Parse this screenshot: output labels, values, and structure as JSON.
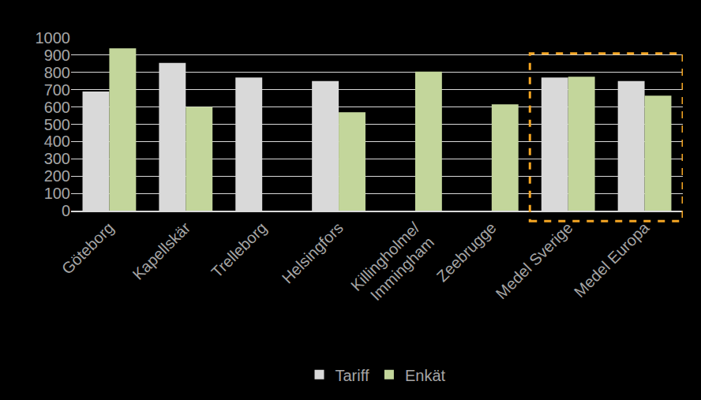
{
  "chart_data": {
    "type": "bar",
    "categories": [
      "Göteborg",
      "Kapellskär",
      "Trelleborg",
      "Helsingfors",
      "Killingholme/\nImmingham",
      "Zeebrugge",
      "Medel Sverige",
      "Medel Europa"
    ],
    "series": [
      {
        "name": "Tariff",
        "color": "#d9d9d9",
        "values": [
          690,
          855,
          770,
          750,
          null,
          null,
          770,
          750
        ]
      },
      {
        "name": "Enkät",
        "color": "#c3d69b",
        "values": [
          940,
          600,
          null,
          570,
          805,
          615,
          775,
          665
        ]
      }
    ],
    "ylim": [
      0,
      1000
    ],
    "yticks": [
      0,
      100,
      200,
      300,
      400,
      500,
      600,
      700,
      800,
      900,
      1000
    ],
    "grid": true,
    "legend": "bottom"
  }
}
